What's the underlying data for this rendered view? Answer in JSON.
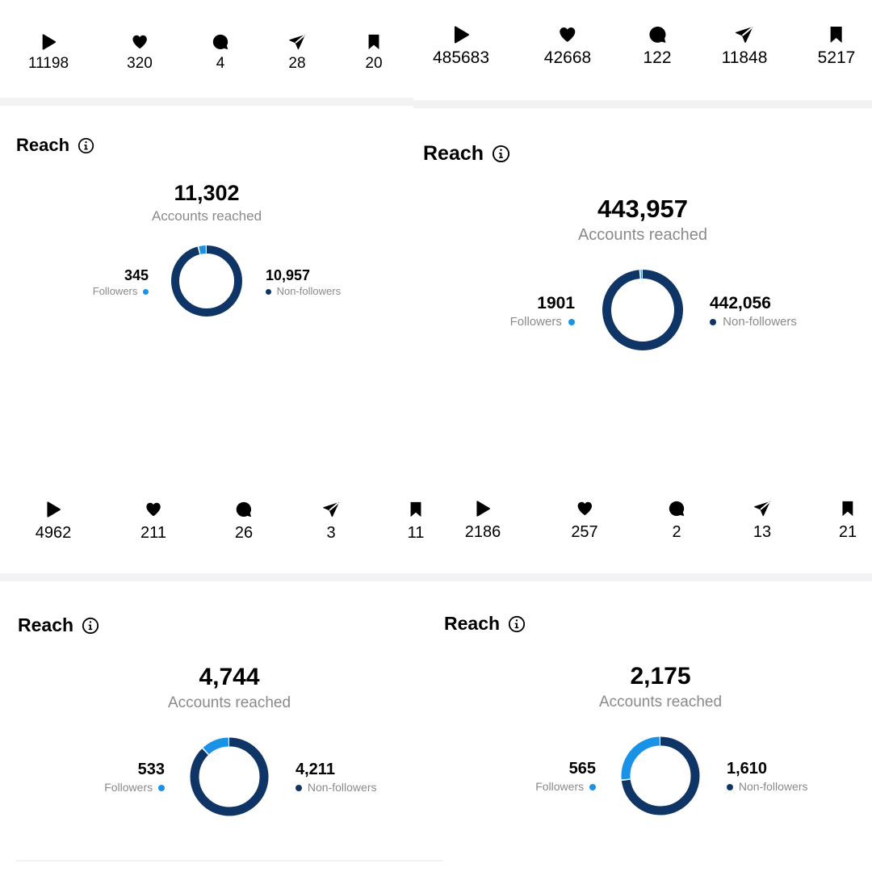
{
  "panels": [
    {
      "stats": {
        "plays": "11198",
        "likes": "320",
        "comments": "4",
        "shares": "28",
        "saves": "20"
      },
      "reach_title": "Reach",
      "accounts_reached": "11,302",
      "accounts_label": "Accounts reached",
      "followers": "345",
      "followers_label": "Followers",
      "non_followers": "10,957",
      "non_followers_label": "Non-followers"
    },
    {
      "stats": {
        "plays": "485683",
        "likes": "42668",
        "comments": "122",
        "shares": "11848",
        "saves": "5217"
      },
      "reach_title": "Reach",
      "accounts_reached": "443,957",
      "accounts_label": "Accounts reached",
      "followers": "1901",
      "followers_label": "Followers",
      "non_followers": "442,056",
      "non_followers_label": "Non-followers"
    },
    {
      "stats": {
        "plays": "4962",
        "likes": "211",
        "comments": "26",
        "shares": "3",
        "saves": "11"
      },
      "reach_title": "Reach",
      "accounts_reached": "4,744",
      "accounts_label": "Accounts reached",
      "followers": "533",
      "followers_label": "Followers",
      "non_followers": "4,211",
      "non_followers_label": "Non-followers"
    },
    {
      "stats": {
        "plays": "2186",
        "likes": "257",
        "comments": "2",
        "shares": "13",
        "saves": "21"
      },
      "reach_title": "Reach",
      "accounts_reached": "2,175",
      "accounts_label": "Accounts reached",
      "followers": "565",
      "followers_label": "Followers",
      "non_followers": "1,610",
      "non_followers_label": "Non-followers"
    }
  ],
  "colors": {
    "followers": "#1a92e6",
    "non_followers": "#0f3566",
    "muted": "#8a8a8e"
  }
}
